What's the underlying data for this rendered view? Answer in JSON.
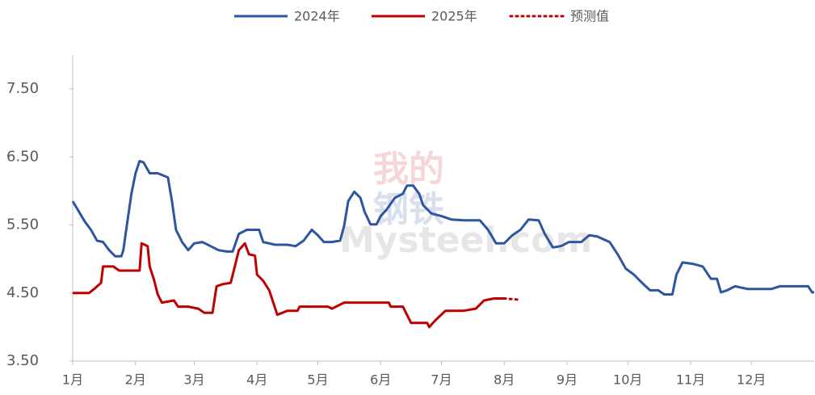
{
  "chart_data": {
    "type": "line",
    "watermark": [
      "我的",
      "钢铁",
      "Mysteel.com"
    ],
    "xlim": [
      0,
      366
    ],
    "ylim": [
      3.5,
      8.0
    ],
    "yticks": [
      {
        "value": 3.5,
        "label": "3.50"
      },
      {
        "value": 4.5,
        "label": "4.50"
      },
      {
        "value": 5.5,
        "label": "5.50"
      },
      {
        "value": 6.5,
        "label": "6.50"
      },
      {
        "value": 7.5,
        "label": "7.50"
      }
    ],
    "xticks": [
      {
        "value": 0,
        "label": "1月"
      },
      {
        "value": 31,
        "label": "2月"
      },
      {
        "value": 60,
        "label": "3月"
      },
      {
        "value": 91,
        "label": "4月"
      },
      {
        "value": 121,
        "label": "5月"
      },
      {
        "value": 152,
        "label": "6月"
      },
      {
        "value": 182,
        "label": "7月"
      },
      {
        "value": 213,
        "label": "8月"
      },
      {
        "value": 244,
        "label": "9月"
      },
      {
        "value": 274,
        "label": "10月"
      },
      {
        "value": 305,
        "label": "11月"
      },
      {
        "value": 335,
        "label": "12月"
      }
    ],
    "grid": false,
    "legend": "top",
    "series": [
      {
        "name": "2024年",
        "color": "#2e55a0",
        "style": "solid",
        "x": [
          0,
          3,
          6,
          9,
          12,
          15,
          18,
          21,
          24,
          25,
          27,
          29,
          31,
          33,
          35,
          38,
          42,
          47,
          49,
          51,
          54,
          57,
          60,
          64,
          68,
          72,
          76,
          79,
          82,
          86,
          92,
          94,
          100,
          106,
          110,
          114,
          118,
          121,
          124,
          128,
          132,
          134,
          136,
          139,
          142,
          144,
          147,
          150,
          152,
          155,
          159,
          163,
          165,
          168,
          171,
          173,
          177,
          182,
          187,
          193,
          201,
          205,
          209,
          213,
          217,
          221,
          225,
          230,
          233,
          237,
          241,
          245,
          251,
          255,
          259,
          265,
          269,
          273,
          277,
          281,
          285,
          289,
          292,
          296,
          298,
          301,
          306,
          311,
          315,
          318,
          320,
          323,
          327,
          333,
          345,
          349,
          363,
          365,
          366
        ],
        "values": [
          5.85,
          5.7,
          5.55,
          5.43,
          5.27,
          5.25,
          5.13,
          5.04,
          5.04,
          5.13,
          5.55,
          5.96,
          6.26,
          6.44,
          6.42,
          6.26,
          6.26,
          6.2,
          5.85,
          5.43,
          5.25,
          5.13,
          5.23,
          5.25,
          5.19,
          5.13,
          5.11,
          5.11,
          5.37,
          5.43,
          5.43,
          5.25,
          5.21,
          5.21,
          5.19,
          5.27,
          5.43,
          5.35,
          5.25,
          5.25,
          5.27,
          5.49,
          5.85,
          5.99,
          5.9,
          5.7,
          5.51,
          5.51,
          5.63,
          5.73,
          5.9,
          5.96,
          6.08,
          6.08,
          5.96,
          5.79,
          5.67,
          5.63,
          5.58,
          5.57,
          5.57,
          5.43,
          5.23,
          5.23,
          5.35,
          5.43,
          5.58,
          5.57,
          5.37,
          5.17,
          5.19,
          5.25,
          5.25,
          5.35,
          5.33,
          5.25,
          5.07,
          4.86,
          4.77,
          4.65,
          4.54,
          4.54,
          4.48,
          4.48,
          4.77,
          4.95,
          4.93,
          4.89,
          4.71,
          4.71,
          4.51,
          4.54,
          4.6,
          4.56,
          4.56,
          4.6,
          4.6,
          4.51,
          4.51
        ]
      },
      {
        "name": "2025年",
        "color": "#c00000",
        "style": "solid",
        "x": [
          0,
          8,
          11,
          14,
          15,
          20,
          23,
          33,
          34,
          37,
          38,
          40,
          42,
          44,
          50,
          52,
          57,
          62,
          65,
          69,
          71,
          74,
          78,
          80,
          82,
          85,
          87,
          90,
          91,
          94,
          97,
          101,
          106,
          111,
          112,
          118,
          126,
          128,
          134,
          156,
          157,
          163,
          167,
          175,
          176,
          179,
          184,
          193,
          199,
          203,
          208,
          213
        ],
        "values": [
          4.5,
          4.5,
          4.57,
          4.65,
          4.89,
          4.89,
          4.83,
          4.83,
          5.23,
          5.19,
          4.89,
          4.71,
          4.48,
          4.36,
          4.39,
          4.3,
          4.3,
          4.27,
          4.21,
          4.21,
          4.6,
          4.63,
          4.65,
          4.89,
          5.13,
          5.23,
          5.07,
          5.05,
          4.77,
          4.68,
          4.54,
          4.18,
          4.24,
          4.24,
          4.3,
          4.3,
          4.3,
          4.27,
          4.36,
          4.36,
          4.3,
          4.3,
          4.06,
          4.06,
          4.0,
          4.1,
          4.24,
          4.24,
          4.27,
          4.39,
          4.42,
          4.42
        ]
      },
      {
        "name": "预测值",
        "color": "#c00000",
        "style": "dotted",
        "x": [
          213,
          221
        ],
        "values": [
          4.42,
          4.4
        ]
      }
    ]
  }
}
